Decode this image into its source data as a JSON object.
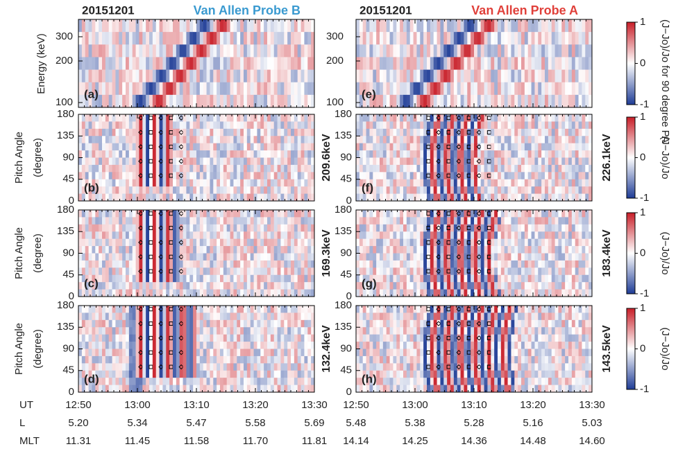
{
  "columns": [
    {
      "date": "20151201",
      "probe": "Van Allen Probe B",
      "probe_color": "#3a9ad0",
      "panels": [
        "(a)",
        "(b)",
        "(c)",
        "(d)"
      ],
      "energies": [
        "209.6keV",
        "169.3keV",
        "132.4keV"
      ]
    },
    {
      "date": "20151201",
      "probe": "Van Allen Probe A",
      "probe_color": "#e0403a",
      "panels": [
        "(e)",
        "(f)",
        "(g)",
        "(h)"
      ],
      "energies": [
        "226.1keV",
        "183.4keV",
        "143.5keV"
      ]
    }
  ],
  "energy_axis": {
    "label": "Energy (keV)",
    "ticks": [
      300,
      200,
      100
    ]
  },
  "pitch_axis": {
    "label": "Pitch Angle",
    "unit": "(degree)",
    "ticks": [
      180,
      135,
      90,
      45,
      0
    ]
  },
  "colorbars": [
    {
      "label": "(J−Jo)/Jo for 90 degree PA",
      "ticks": [
        1,
        0,
        -1
      ]
    },
    {
      "label": "(J−Jo)/Jo",
      "ticks": [
        1,
        0,
        -1
      ]
    },
    {
      "label": "(J−Jo)/Jo",
      "ticks": [
        1,
        0,
        -1
      ]
    },
    {
      "label": "(J−Jo)/Jo",
      "ticks": [
        1,
        0,
        -1
      ]
    }
  ],
  "footer": [
    {
      "name": "UT",
      "left": [
        "12:50",
        "13:00",
        "13:10",
        "13:20",
        "13:30"
      ],
      "right": [
        "12:50",
        "13:00",
        "13:10",
        "13:20",
        "13:30"
      ]
    },
    {
      "name": "L",
      "left": [
        "5.20",
        "5.34",
        "5.47",
        "5.58",
        "5.69"
      ],
      "right": [
        "5.48",
        "5.38",
        "5.28",
        "5.16",
        "5.03"
      ]
    },
    {
      "name": "MLT",
      "left": [
        "11.31",
        "11.45",
        "11.58",
        "11.70",
        "11.81"
      ],
      "right": [
        "14.14",
        "14.25",
        "14.36",
        "14.48",
        "14.60"
      ]
    }
  ]
}
